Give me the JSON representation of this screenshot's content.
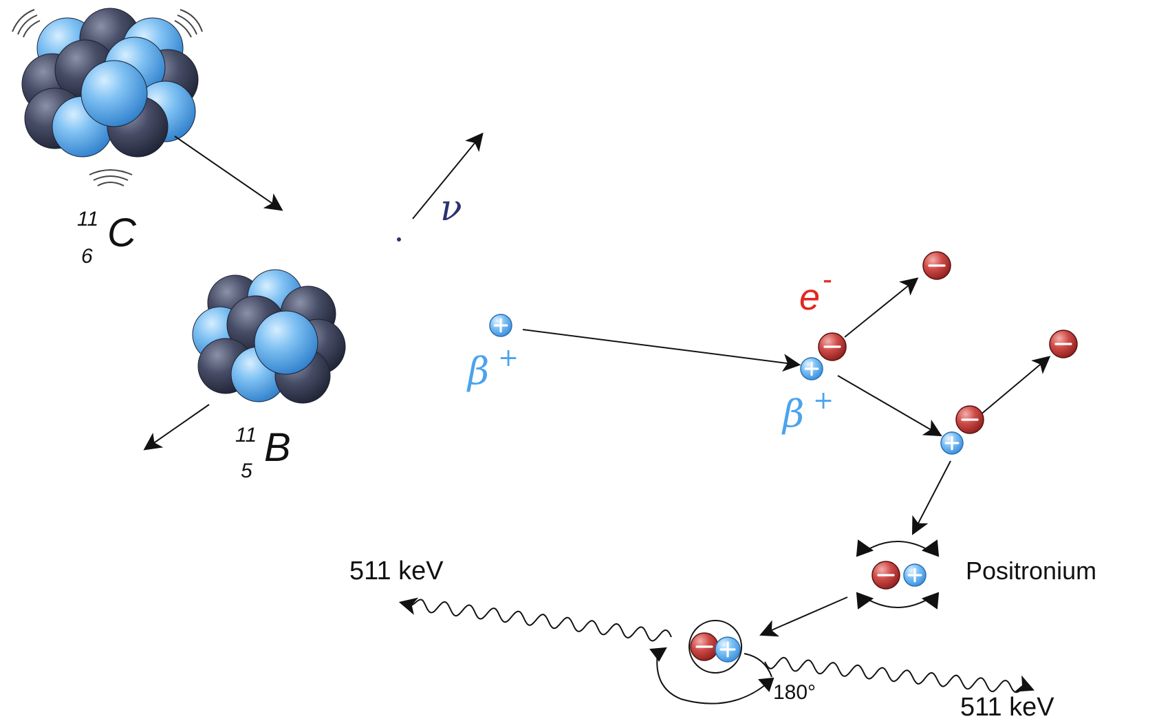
{
  "labels": {
    "carbon_mass": "11",
    "carbon_atomic": "6",
    "carbon_symbol": "C",
    "boron_mass": "11",
    "boron_atomic": "5",
    "boron_symbol": "B",
    "neutrino": "ν",
    "beta_plus_1": "β",
    "beta_plus_1_sup": "+",
    "beta_plus_2": "β",
    "beta_plus_2_sup": "+",
    "electron": "e",
    "electron_sup": "-",
    "positronium": "Positronium",
    "gamma_left": "511 keV",
    "gamma_right": "511 keV",
    "angle": "180°"
  },
  "colors": {
    "proton_light": "#8ec9f5",
    "proton_base": "#3f97e3",
    "neutron_light": "#6b7288",
    "neutron_base": "#2e3348",
    "electron_light": "#e88a88",
    "electron_base": "#b8302f",
    "positron_light": "#cfe8ff",
    "positron_base": "#4aa3ee",
    "beta_text": "#4aa3ee",
    "electron_text": "#e1281f",
    "neutrino_text": "#2a3270",
    "ink": "#111111"
  },
  "icons": {
    "nucleus": "nucleus-cluster-icon",
    "electron": "electron-minus-icon",
    "positron": "positron-plus-icon",
    "photon": "wavy-photon-arrow"
  }
}
